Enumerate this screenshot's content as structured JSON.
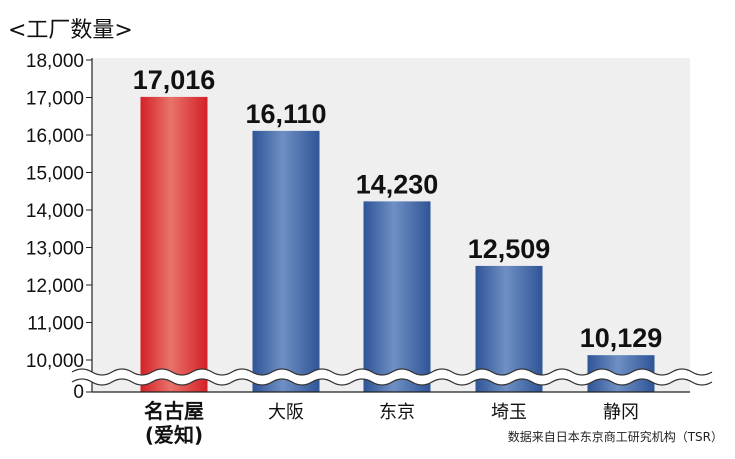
{
  "chart_data": {
    "type": "bar",
    "title": "<工厂数量>",
    "source": "数据来自日本东京商工研究机构（TSR）",
    "categories": [
      "名古屋\n(爱知)",
      "大阪",
      "东京",
      "埼玉",
      "静冈"
    ],
    "category_lines": [
      [
        "名古屋",
        "(爱知)"
      ],
      [
        "大阪"
      ],
      [
        "东京"
      ],
      [
        "埼玉"
      ],
      [
        "静冈"
      ]
    ],
    "values": [
      17016,
      16110,
      14230,
      12509,
      10129
    ],
    "value_labels": [
      "17,016",
      "16,110",
      "14,230",
      "12,509",
      "10,129"
    ],
    "highlight_index": 0,
    "y_ticks": [
      10000,
      11000,
      12000,
      13000,
      14000,
      15000,
      16000,
      17000,
      18000
    ],
    "y_tick_labels": [
      "10,000",
      "11,000",
      "12,000",
      "13,000",
      "14,000",
      "15,000",
      "16,000",
      "17,000",
      "18,000"
    ],
    "y_zero_label": "0",
    "ylim": [
      10000,
      18000
    ],
    "axis_break": true,
    "grid": false,
    "colors": {
      "highlight": "#d42027",
      "normal": "#2f5597",
      "plot_bg": "#efefef"
    }
  }
}
